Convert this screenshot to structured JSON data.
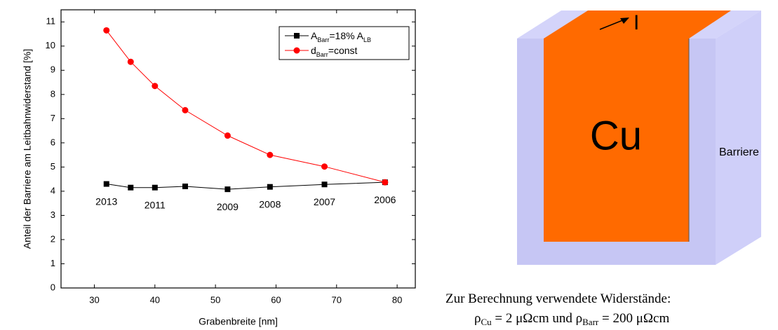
{
  "chart_data": {
    "type": "line",
    "x_label": "Grabenbreite [nm]",
    "y_label": "Anteil der Barriere am Leitbahnwiderstand [%]",
    "x": [
      32,
      36,
      40,
      45,
      52,
      59,
      68,
      78
    ],
    "series": [
      {
        "name": [
          "A",
          "Barr",
          "=18% A",
          "LB"
        ],
        "color": "#000000",
        "marker": "square",
        "values": [
          4.3,
          4.15,
          4.15,
          4.2,
          4.08,
          4.18,
          4.28,
          4.37
        ],
        "point_labels": [
          "2013",
          null,
          "2011",
          null,
          "2009",
          "2008",
          "2007",
          "2006"
        ]
      },
      {
        "name": [
          "d",
          "Barr",
          "=const"
        ],
        "color": "#ff0000",
        "marker": "circle",
        "values": [
          10.65,
          9.35,
          8.35,
          7.35,
          6.3,
          5.5,
          5.02,
          4.37
        ]
      }
    ],
    "xlim": [
      24.5,
      83
    ],
    "xticks": [
      30,
      40,
      50,
      60,
      70,
      80
    ],
    "ylim": [
      0,
      11.5
    ],
    "yticks": [
      0,
      1,
      2,
      3,
      4,
      5,
      6,
      7,
      8,
      9,
      10,
      11
    ],
    "legend": "top-right"
  },
  "diagram": {
    "current": "I",
    "conductor": "Cu",
    "barrier": "Barriere",
    "caption": "Zur Berechnung verwendete Widerstände:",
    "formula": [
      "ρ",
      "Cu",
      " = 2 μΩcm und ρ",
      "Barr",
      " = 200 μΩcm"
    ]
  }
}
